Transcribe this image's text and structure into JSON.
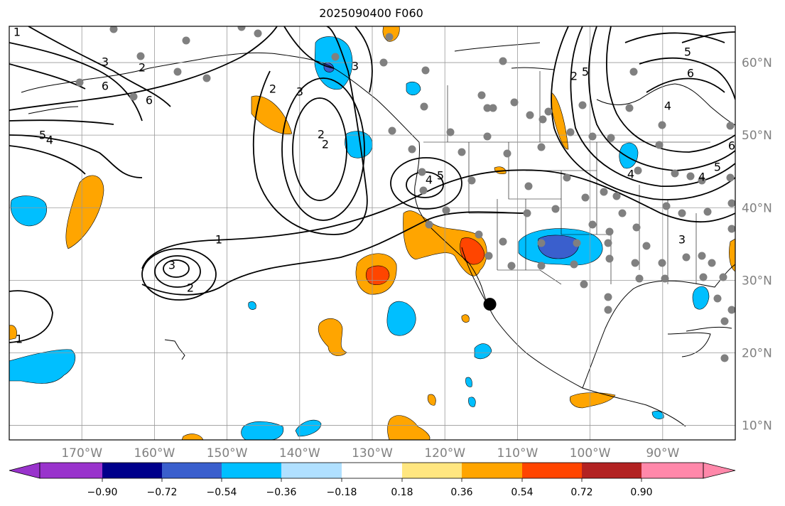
{
  "title": "2025090400 F060",
  "map": {
    "projection": "PlateCarree",
    "lon_range": [
      -180,
      -80
    ],
    "lat_range": [
      8,
      65
    ],
    "grid": true,
    "lon_labels": [
      "170°W",
      "160°W",
      "150°W",
      "140°W",
      "130°W",
      "120°W",
      "110°W",
      "100°W",
      "90°W"
    ],
    "lat_labels": [
      "60°N",
      "50°N",
      "40°N",
      "30°N",
      "20°N",
      "10°N"
    ]
  },
  "contour_labels": [
    "1",
    "2",
    "3",
    "4",
    "5",
    "6",
    "1",
    "2",
    "3",
    "2",
    "2",
    "3",
    "4",
    "5",
    "6",
    "2",
    "3",
    "3",
    "4",
    "5",
    "6",
    "2",
    "4",
    "5",
    "6",
    "4",
    "5",
    "1"
  ],
  "highlight_marker": {
    "lon": -113.8,
    "lat": 26.7
  },
  "colorbar": {
    "extend": "both",
    "colors": [
      "#9933cc",
      "#00008b",
      "#3a5fcd",
      "#00bfff",
      "#b0e0ff",
      "#ffffff",
      "#ffe680",
      "#ffa500",
      "#ff4500",
      "#b22222",
      "#ff88aa"
    ],
    "tick_labels": [
      "−0.90",
      "−0.72",
      "−0.54",
      "−0.36",
      "−0.18",
      "0.18",
      "0.36",
      "0.54",
      "0.72",
      "0.90"
    ]
  }
}
